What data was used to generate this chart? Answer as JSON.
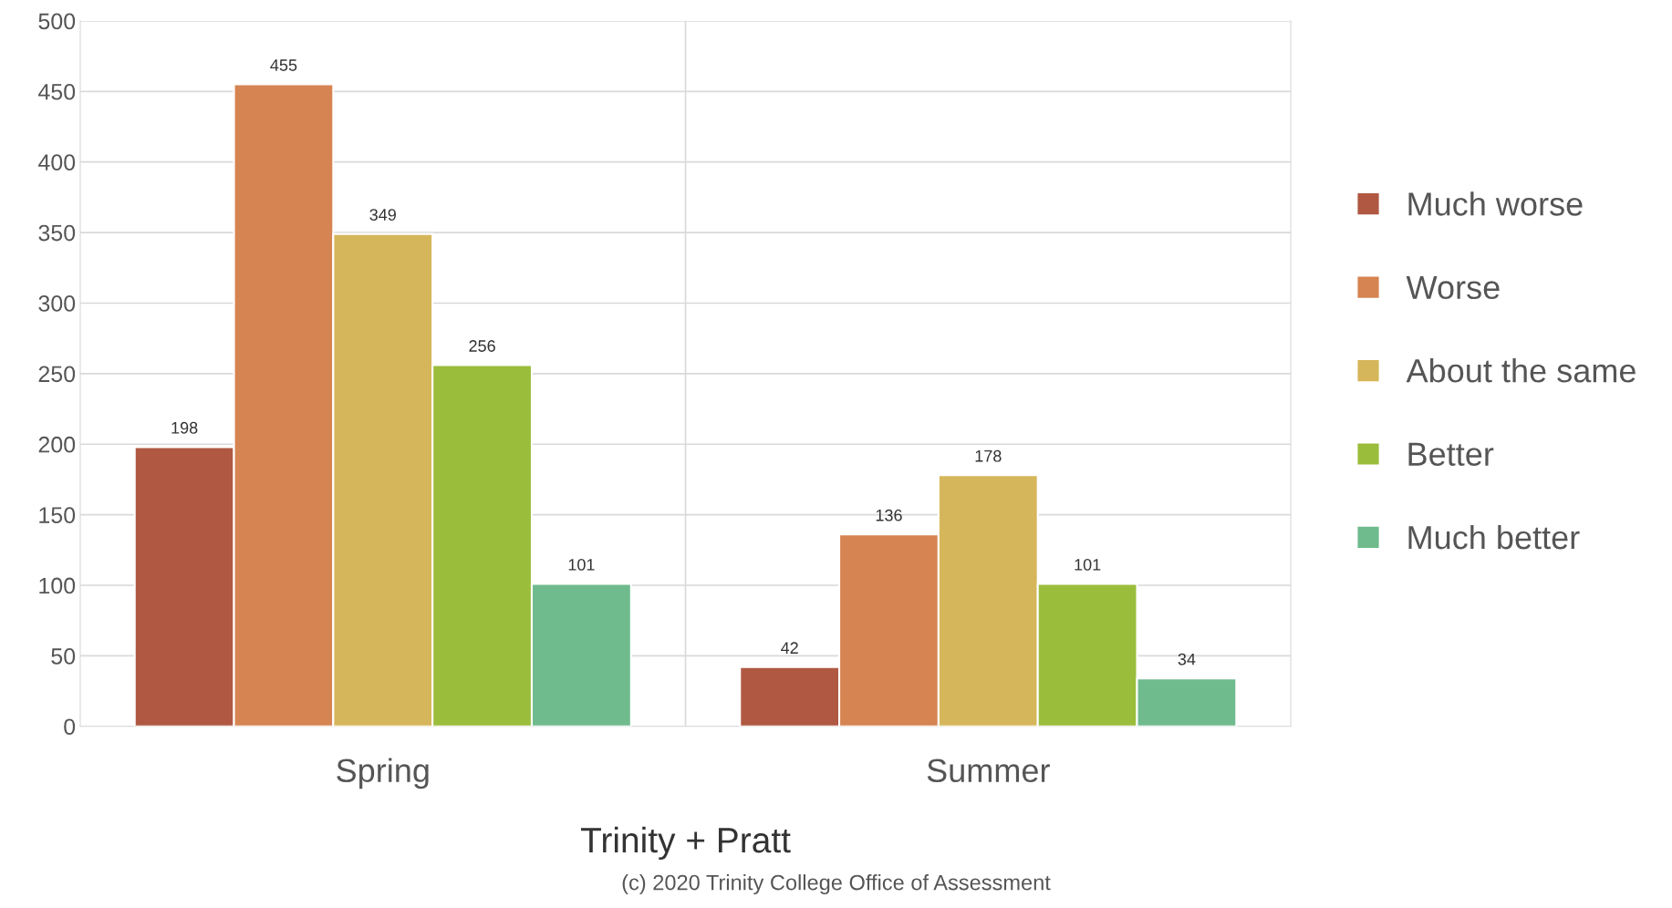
{
  "chart_data": {
    "type": "bar",
    "xlabel": "Trinity + Pratt",
    "categories": [
      "Spring",
      "Summer"
    ],
    "series": [
      {
        "name": "Much worse",
        "color": "#b05842",
        "values": [
          198,
          42
        ]
      },
      {
        "name": "Worse",
        "color": "#d68452",
        "values": [
          455,
          136
        ]
      },
      {
        "name": "About the same",
        "color": "#d6b65a",
        "values": [
          349,
          178
        ]
      },
      {
        "name": "Better",
        "color": "#9bbd3c",
        "values": [
          256,
          101
        ]
      },
      {
        "name": "Much better",
        "color": "#6fbb8e",
        "values": [
          101,
          34
        ]
      }
    ],
    "ylim": [
      0,
      500
    ],
    "yticks": [
      0,
      50,
      100,
      150,
      200,
      250,
      300,
      350,
      400,
      450,
      500
    ],
    "grid": true,
    "legend": "right",
    "data_labels": true,
    "annotations": [
      "(c) 2020 Trinity College Office of Assessment"
    ]
  }
}
